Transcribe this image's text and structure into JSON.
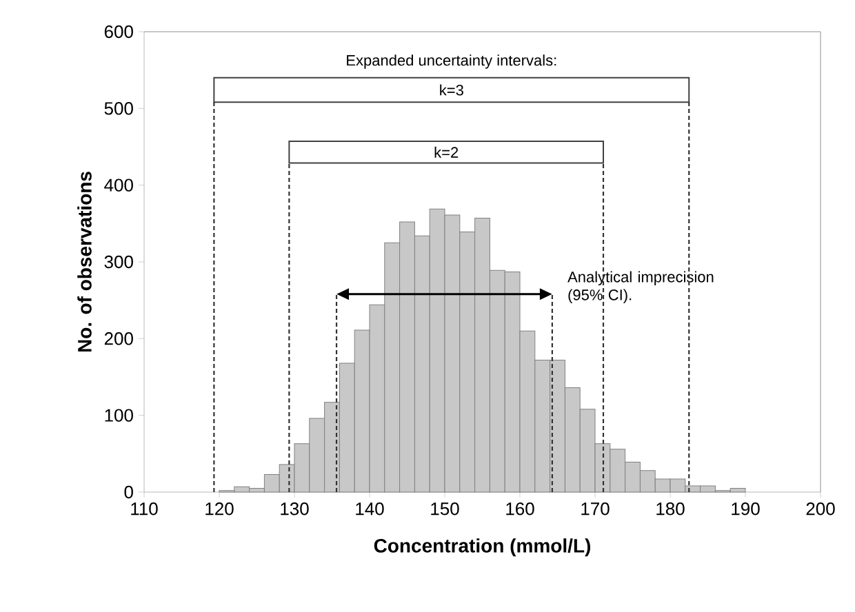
{
  "chart_data": {
    "type": "histogram",
    "xlabel": "Concentration (mmol/L)",
    "ylabel": "No. of observations",
    "bins": [
      120,
      122,
      124,
      126,
      128,
      130,
      132,
      134,
      136,
      138,
      140,
      142,
      144,
      146,
      148,
      150,
      152,
      154,
      156,
      158,
      160,
      162,
      164,
      166,
      168,
      170,
      172,
      174,
      176,
      178,
      180,
      182,
      184,
      186,
      188,
      190
    ],
    "values": [
      2,
      7,
      5,
      23,
      36,
      63,
      96,
      117,
      168,
      211,
      244,
      325,
      352,
      334,
      369,
      361,
      339,
      357,
      289,
      287,
      210,
      172,
      172,
      136,
      108,
      63,
      56,
      39,
      28,
      17,
      17,
      8,
      8,
      2,
      5
    ],
    "color": "#c8c8c8",
    "xlim": [
      110,
      200
    ],
    "xticks": [
      110,
      120,
      130,
      140,
      150,
      160,
      170,
      180,
      190,
      200
    ],
    "ylim": [
      0,
      600
    ],
    "yticks": [
      0,
      100,
      200,
      300,
      400,
      500,
      600
    ],
    "grid": false,
    "bands": [
      {
        "axis": "x",
        "from": 119.3,
        "to": 182.5,
        "label": "k=3",
        "color": "#ffffff"
      },
      {
        "axis": "x",
        "from": 129.3,
        "to": 171.1,
        "label": "k=2",
        "color": "#ffffff"
      }
    ],
    "ref_lines": [
      {
        "axis": "x",
        "value": 119.3,
        "line_style": "dashed"
      },
      {
        "axis": "x",
        "value": 182.5,
        "line_style": "dashed"
      },
      {
        "axis": "x",
        "value": 129.3,
        "line_style": "dashed"
      },
      {
        "axis": "x",
        "value": 171.1,
        "line_style": "dashed"
      },
      {
        "axis": "x",
        "value": 135.6,
        "line_style": "dashed"
      },
      {
        "axis": "x",
        "value": 164.3,
        "line_style": "dashed"
      }
    ],
    "annotations": [
      "Expanded uncertainty intervals:",
      "Analytical imprecision (95% CI)."
    ]
  }
}
